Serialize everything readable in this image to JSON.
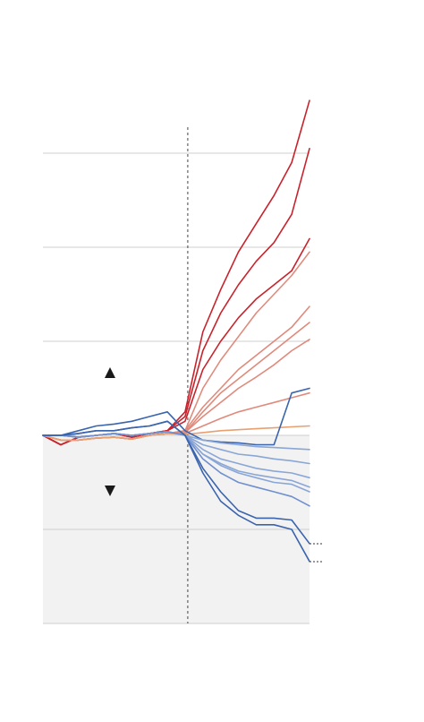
{
  "chart_data": {
    "type": "line",
    "x": [
      0,
      2,
      4,
      6,
      8,
      10,
      12,
      14,
      16,
      18,
      20,
      22,
      24,
      26,
      28,
      30
    ],
    "xlim": [
      0,
      30
    ],
    "ylim": [
      -2,
      3.6
    ],
    "yticks": [
      -2,
      -1,
      0,
      1,
      2,
      3
    ],
    "grid": true,
    "reference_line_x": 16.3,
    "negative_shade": "#f2f2f2",
    "series": [
      {
        "color": "#c8232c",
        "values": [
          0,
          -0.1,
          -0.02,
          0,
          0.02,
          -0.02,
          0.02,
          0.05,
          0.25,
          1.1,
          1.55,
          1.95,
          2.25,
          2.55,
          2.9,
          3.56
        ]
      },
      {
        "color": "#c8232c",
        "values": [
          0,
          -0.1,
          -0.02,
          0,
          0.02,
          -0.02,
          0.02,
          0.05,
          0.2,
          0.9,
          1.3,
          1.6,
          1.85,
          2.05,
          2.35,
          3.05
        ]
      },
      {
        "color": "#c8232c",
        "values": [
          0,
          -0.1,
          -0.02,
          0,
          0.02,
          -0.02,
          0.02,
          0.05,
          0.15,
          0.7,
          1.0,
          1.25,
          1.45,
          1.6,
          1.75,
          2.09
        ]
      },
      {
        "color": "#e08a7c",
        "values": [
          0,
          -0.05,
          -0.05,
          -0.03,
          -0.02,
          -0.04,
          0,
          0.02,
          0.05,
          0.5,
          0.8,
          1.05,
          1.3,
          1.5,
          1.7,
          1.95
        ]
      },
      {
        "color": "#e08a7c",
        "values": [
          0,
          -0.05,
          -0.05,
          -0.03,
          -0.02,
          -0.04,
          0,
          0.02,
          0.05,
          0.3,
          0.5,
          0.7,
          0.85,
          1.0,
          1.15,
          1.37
        ]
      },
      {
        "color": "#e08a7c",
        "values": [
          0,
          -0.05,
          -0.05,
          -0.03,
          -0.02,
          -0.04,
          0,
          0.02,
          0.03,
          0.25,
          0.45,
          0.6,
          0.75,
          0.9,
          1.05,
          1.2
        ]
      },
      {
        "color": "#e08a7c",
        "values": [
          0,
          -0.05,
          -0.05,
          -0.03,
          -0.02,
          -0.04,
          0,
          0.02,
          0.03,
          0.2,
          0.35,
          0.5,
          0.62,
          0.75,
          0.9,
          1.02
        ]
      },
      {
        "color": "#e08a7c",
        "values": [
          0,
          -0.05,
          -0.05,
          -0.03,
          -0.02,
          -0.04,
          0,
          0.02,
          0.02,
          0.1,
          0.18,
          0.25,
          0.3,
          0.35,
          0.4,
          0.45
        ]
      },
      {
        "color": "#e8a070",
        "values": [
          0,
          -0.05,
          -0.05,
          -0.03,
          -0.02,
          -0.04,
          0,
          0.02,
          0.01,
          0.03,
          0.05,
          0.06,
          0.07,
          0.08,
          0.09,
          0.1
        ]
      },
      {
        "color": "#3a64ad",
        "values": [
          0,
          0,
          0.05,
          0.1,
          0.12,
          0.15,
          0.2,
          0.25,
          0.05,
          -0.05,
          -0.07,
          -0.08,
          -0.1,
          -0.1,
          0.45,
          0.5
        ]
      },
      {
        "color": "#8aa6d6",
        "values": [
          0,
          0,
          -0.02,
          0,
          0.02,
          0,
          0.02,
          0.04,
          0,
          -0.05,
          -0.08,
          -0.1,
          -0.12,
          -0.13,
          -0.14,
          -0.15
        ]
      },
      {
        "color": "#8aa6d6",
        "values": [
          0,
          0,
          -0.02,
          0,
          0.02,
          0,
          0.02,
          0.04,
          0,
          -0.1,
          -0.15,
          -0.2,
          -0.22,
          -0.25,
          -0.27,
          -0.3
        ]
      },
      {
        "color": "#8aa6d6",
        "values": [
          0,
          0,
          -0.02,
          0,
          0.02,
          0,
          0.02,
          0.04,
          0,
          -0.15,
          -0.25,
          -0.3,
          -0.35,
          -0.38,
          -0.4,
          -0.45
        ]
      },
      {
        "color": "#8aa6d6",
        "values": [
          0,
          0,
          -0.02,
          0,
          0.02,
          0,
          0.02,
          0.04,
          0,
          -0.2,
          -0.3,
          -0.38,
          -0.42,
          -0.45,
          -0.48,
          -0.55
        ]
      },
      {
        "color": "#8aa6d6",
        "values": [
          0,
          0,
          -0.02,
          0,
          0.02,
          0,
          0.02,
          0.04,
          0,
          -0.2,
          -0.32,
          -0.4,
          -0.45,
          -0.5,
          -0.52,
          -0.6
        ]
      },
      {
        "color": "#6f8fcf",
        "values": [
          0,
          0,
          -0.02,
          0,
          0.02,
          0,
          0.02,
          0.04,
          0,
          -0.25,
          -0.4,
          -0.5,
          -0.55,
          -0.6,
          -0.65,
          -0.75
        ]
      },
      {
        "color": "#3a64ad",
        "values": [
          0,
          0,
          0.02,
          0.05,
          0.05,
          0.08,
          0.1,
          0.15,
          0,
          -0.35,
          -0.6,
          -0.8,
          -0.88,
          -0.88,
          -0.9,
          -1.15
        ]
      },
      {
        "color": "#3a64ad",
        "values": [
          0,
          0,
          0.02,
          0.05,
          0.05,
          0.08,
          0.1,
          0.15,
          0,
          -0.4,
          -0.7,
          -0.85,
          -0.95,
          -0.95,
          -1.0,
          -1.34
        ]
      }
    ]
  }
}
